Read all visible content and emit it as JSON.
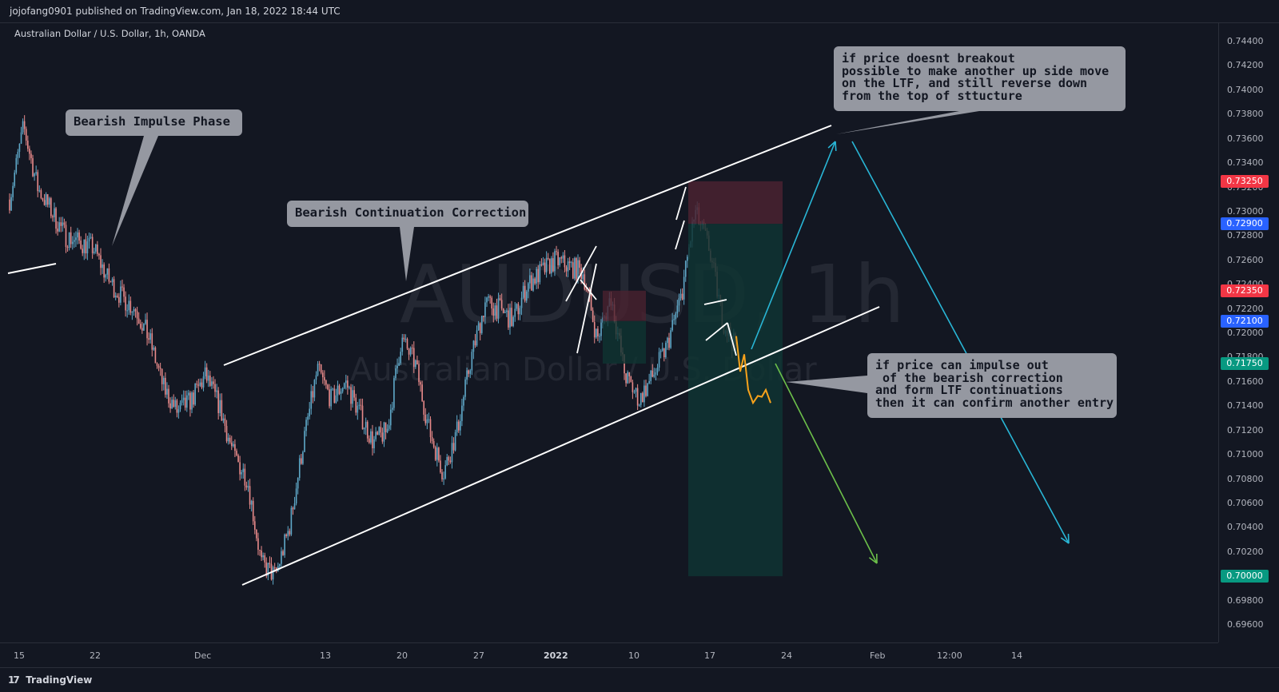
{
  "header": {
    "published": "jojofang0901 published on TradingView.com, Jan 18, 2022 18:44 UTC"
  },
  "symbol": {
    "title": "Australian Dollar / U.S. Dollar, 1h, OANDA"
  },
  "watermark": {
    "ticker": "AUDUSD, 1h",
    "name": "Australian Dollar / U.S. Dollar"
  },
  "footer": {
    "brand": "TradingView"
  },
  "colors": {
    "background": "#131722",
    "up": "#5fa8c8",
    "down": "#e88a8a",
    "stop_zone": "#4a2230",
    "target_zone": "#0f3432",
    "channel": "#ffffff",
    "projection": "#f7a21b",
    "arrow_blue": "#29b6d6",
    "arrow_green": "#6cc04a"
  },
  "callouts": {
    "impulse": {
      "lines": [
        "Bearish Impulse Phase"
      ]
    },
    "correction": {
      "lines": [
        "Bearish Continuation Correction"
      ]
    },
    "top": {
      "lines": [
        "if price doesnt breakout",
        "possible to make another up side move",
        "on the LTF, and still reverse down",
        "from the top of sttucture"
      ]
    },
    "bottom": {
      "lines": [
        "if price can impulse out",
        " of the bearish correction",
        "and form LTF continuations",
        "then it can confirm another entry"
      ]
    }
  },
  "chart_data": {
    "type": "candlestick",
    "symbol": "AUDUSD",
    "interval": "1h",
    "ylim": [
      0.695,
      0.745
    ],
    "y_ticks": [
      "0.74400",
      "0.74200",
      "0.74000",
      "0.73800",
      "0.73600",
      "0.73400",
      "0.73200",
      "0.73000",
      "0.72800",
      "0.72600",
      "0.72400",
      "0.72200",
      "0.72000",
      "0.71800",
      "0.71600",
      "0.71400",
      "0.71200",
      "0.71000",
      "0.70800",
      "0.70600",
      "0.70400",
      "0.70200",
      "0.70000",
      "0.69800",
      "0.69600"
    ],
    "x_ticks": [
      "15",
      "22",
      "Dec",
      "13",
      "20",
      "27",
      "2022",
      "10",
      "17",
      "24",
      "Feb",
      "12:00",
      "14"
    ],
    "price_badges": [
      {
        "label": "0.73250",
        "value": 0.7325,
        "color": "#f23645"
      },
      {
        "label": "0.72900",
        "value": 0.729,
        "color": "#2962ff"
      },
      {
        "label": "0.72350",
        "value": 0.7235,
        "color": "#f23645"
      },
      {
        "label": "0.72100",
        "value": 0.721,
        "color": "#2962ff"
      },
      {
        "label": "0.71750",
        "value": 0.7175,
        "color": "#089981"
      },
      {
        "label": "0.70000",
        "value": 0.7,
        "color": "#089981"
      }
    ],
    "price_path": [
      [
        "15",
        0.731
      ],
      [
        "16",
        0.737
      ],
      [
        "17",
        0.732
      ],
      [
        "18",
        0.73
      ],
      [
        "19",
        0.728
      ],
      [
        "20",
        0.7275
      ],
      [
        "21",
        0.727
      ],
      [
        "22",
        0.7245
      ],
      [
        "23",
        0.723
      ],
      [
        "24",
        0.722
      ],
      [
        "25",
        0.7195
      ],
      [
        "26",
        0.7155
      ],
      [
        "27",
        0.7135
      ],
      [
        "28",
        0.7145
      ],
      [
        "29",
        0.7165
      ],
      [
        "30",
        0.714
      ],
      [
        "Dec 1",
        0.71
      ],
      [
        "Dec 2",
        0.708
      ],
      [
        "Dec 3",
        0.701
      ],
      [
        "Dec 5",
        0.7
      ],
      [
        "Dec 6",
        0.704
      ],
      [
        "Dec 7",
        0.711
      ],
      [
        "Dec 8",
        0.717
      ],
      [
        "Dec 9",
        0.7145
      ],
      [
        "Dec 10",
        0.716
      ],
      [
        "Dec 13",
        0.7135
      ],
      [
        "Dec 14",
        0.711
      ],
      [
        "Dec 15",
        0.712
      ],
      [
        "Dec 16",
        0.7195
      ],
      [
        "Dec 17",
        0.7175
      ],
      [
        "Dec 19",
        0.712
      ],
      [
        "Dec 20",
        0.7085
      ],
      [
        "Dec 21",
        0.712
      ],
      [
        "Dec 22",
        0.718
      ],
      [
        "Dec 23",
        0.7225
      ],
      [
        "Dec 24",
        0.722
      ],
      [
        "Dec 27",
        0.721
      ],
      [
        "Dec 28",
        0.724
      ],
      [
        "Dec 29",
        0.725
      ],
      [
        "Dec 30",
        0.726
      ],
      [
        "Dec 31",
        0.7255
      ],
      [
        "2022",
        0.725
      ],
      [
        "Jan 4",
        0.7195
      ],
      [
        "Jan 5",
        0.723
      ],
      [
        "Jan 6",
        0.7165
      ],
      [
        "Jan 7",
        0.7145
      ],
      [
        "Jan 10",
        0.7165
      ],
      [
        "Jan 11",
        0.719
      ],
      [
        "Jan 12",
        0.723
      ],
      [
        "Jan 13",
        0.73
      ],
      [
        "Jan 14",
        0.727
      ],
      [
        "Jan 17",
        0.721
      ],
      [
        "Jan 18",
        0.7185
      ]
    ],
    "channel": {
      "upper": [
        [
          "Dec 3",
          0.7175
        ],
        [
          "Jan 27",
          0.738
        ]
      ],
      "lower": [
        [
          "Dec 5",
          0.6995
        ],
        [
          "Jan 27",
          0.722
        ]
      ]
    },
    "projection": [
      0.7195,
      0.7175,
      0.718,
      0.716,
      0.714,
      0.7155,
      0.7145,
      0.716,
      0.714
    ],
    "short_position": {
      "entry": 0.729,
      "stop": 0.7325,
      "target": 0.7
    },
    "arrows": [
      {
        "color": "blue",
        "from": 0.719,
        "to": 0.736
      },
      {
        "color": "blue",
        "from": 0.736,
        "to": 0.7025
      },
      {
        "color": "green",
        "from": 0.7175,
        "to": 0.701
      }
    ]
  }
}
